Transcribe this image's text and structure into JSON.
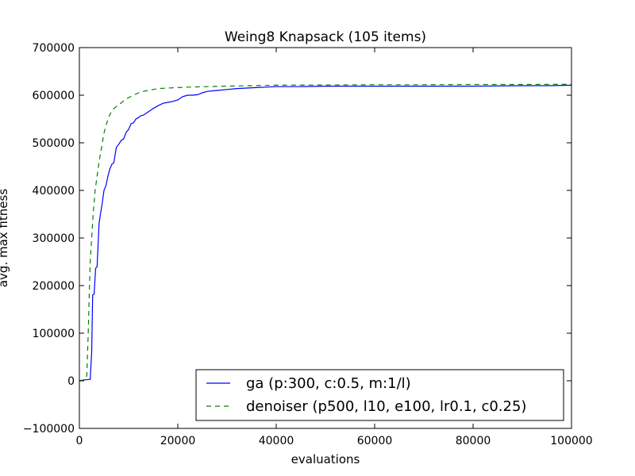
{
  "chart_data": {
    "type": "line",
    "title": "Weing8 Knapsack (105 items)",
    "xlabel": "evaluations",
    "ylabel": "avg. max fitness",
    "xlim": [
      0,
      100000
    ],
    "ylim": [
      -100000,
      700000
    ],
    "xticks": [
      0,
      20000,
      40000,
      60000,
      80000,
      100000
    ],
    "yticks": [
      -100000,
      0,
      100000,
      200000,
      300000,
      400000,
      500000,
      600000,
      700000
    ],
    "xtick_labels": [
      "0",
      "20000",
      "40000",
      "60000",
      "80000",
      "100000"
    ],
    "ytick_labels": [
      "−100000",
      "0",
      "100000",
      "200000",
      "300000",
      "400000",
      "500000",
      "600000",
      "700000"
    ],
    "grid": false,
    "legend_position": "lower-right",
    "series": [
      {
        "name": "ga (p:300, c:0.5, m:1/l)",
        "color": "#0000ff",
        "style": "solid",
        "x": [
          0,
          1000,
          2200,
          2500,
          2700,
          3000,
          3300,
          3600,
          4000,
          4200,
          4600,
          5000,
          5400,
          5800,
          6200,
          6600,
          7000,
          7500,
          8000,
          8500,
          9000,
          9500,
          10000,
          10500,
          11000,
          11500,
          12000,
          12500,
          13000,
          14000,
          15000,
          16000,
          17000,
          18000,
          19000,
          20000,
          21000,
          22000,
          23000,
          24000,
          25000,
          26000,
          28000,
          30000,
          32000,
          34000,
          36000,
          38000,
          40000,
          45000,
          50000,
          60000,
          70000,
          80000,
          90000,
          95000,
          100000
        ],
        "y": [
          0,
          2000,
          3000,
          60000,
          180000,
          182000,
          236000,
          240000,
          330000,
          345000,
          370000,
          400000,
          410000,
          430000,
          445000,
          455000,
          458000,
          490000,
          497000,
          505000,
          508000,
          522000,
          528000,
          540000,
          542000,
          550000,
          553000,
          557000,
          558000,
          565000,
          572000,
          578000,
          583000,
          585000,
          587000,
          590000,
          597000,
          600000,
          600000,
          601000,
          605000,
          608000,
          610000,
          612000,
          614000,
          615000,
          616000,
          617000,
          618000,
          618000,
          619000,
          619000,
          619000,
          619000,
          620000,
          620000,
          621000
        ]
      },
      {
        "name": "denoiser (p500, l10, e100, lr0.1, c0.25)",
        "color": "#008000",
        "style": "dashed",
        "x": [
          0,
          1000,
          1500,
          1800,
          2000,
          2200,
          2500,
          2800,
          3200,
          3600,
          4000,
          4500,
          5000,
          5500,
          6000,
          6500,
          7000,
          8000,
          9000,
          10000,
          11000,
          12000,
          13000,
          14000,
          15000,
          16000,
          18000,
          20000,
          22000,
          24000,
          26000,
          28000,
          30000,
          35000,
          40000,
          50000,
          60000,
          70000,
          80000,
          90000,
          100000
        ],
        "y": [
          0,
          2000,
          10000,
          100000,
          180000,
          250000,
          300000,
          350000,
          400000,
          430000,
          460000,
          490000,
          520000,
          540000,
          555000,
          565000,
          572000,
          580000,
          588000,
          595000,
          600000,
          605000,
          608000,
          610000,
          612000,
          614000,
          615000,
          616000,
          617000,
          617500,
          618000,
          618500,
          619000,
          620000,
          621000,
          621500,
          622000,
          622000,
          622500,
          622500,
          623000
        ]
      }
    ]
  }
}
